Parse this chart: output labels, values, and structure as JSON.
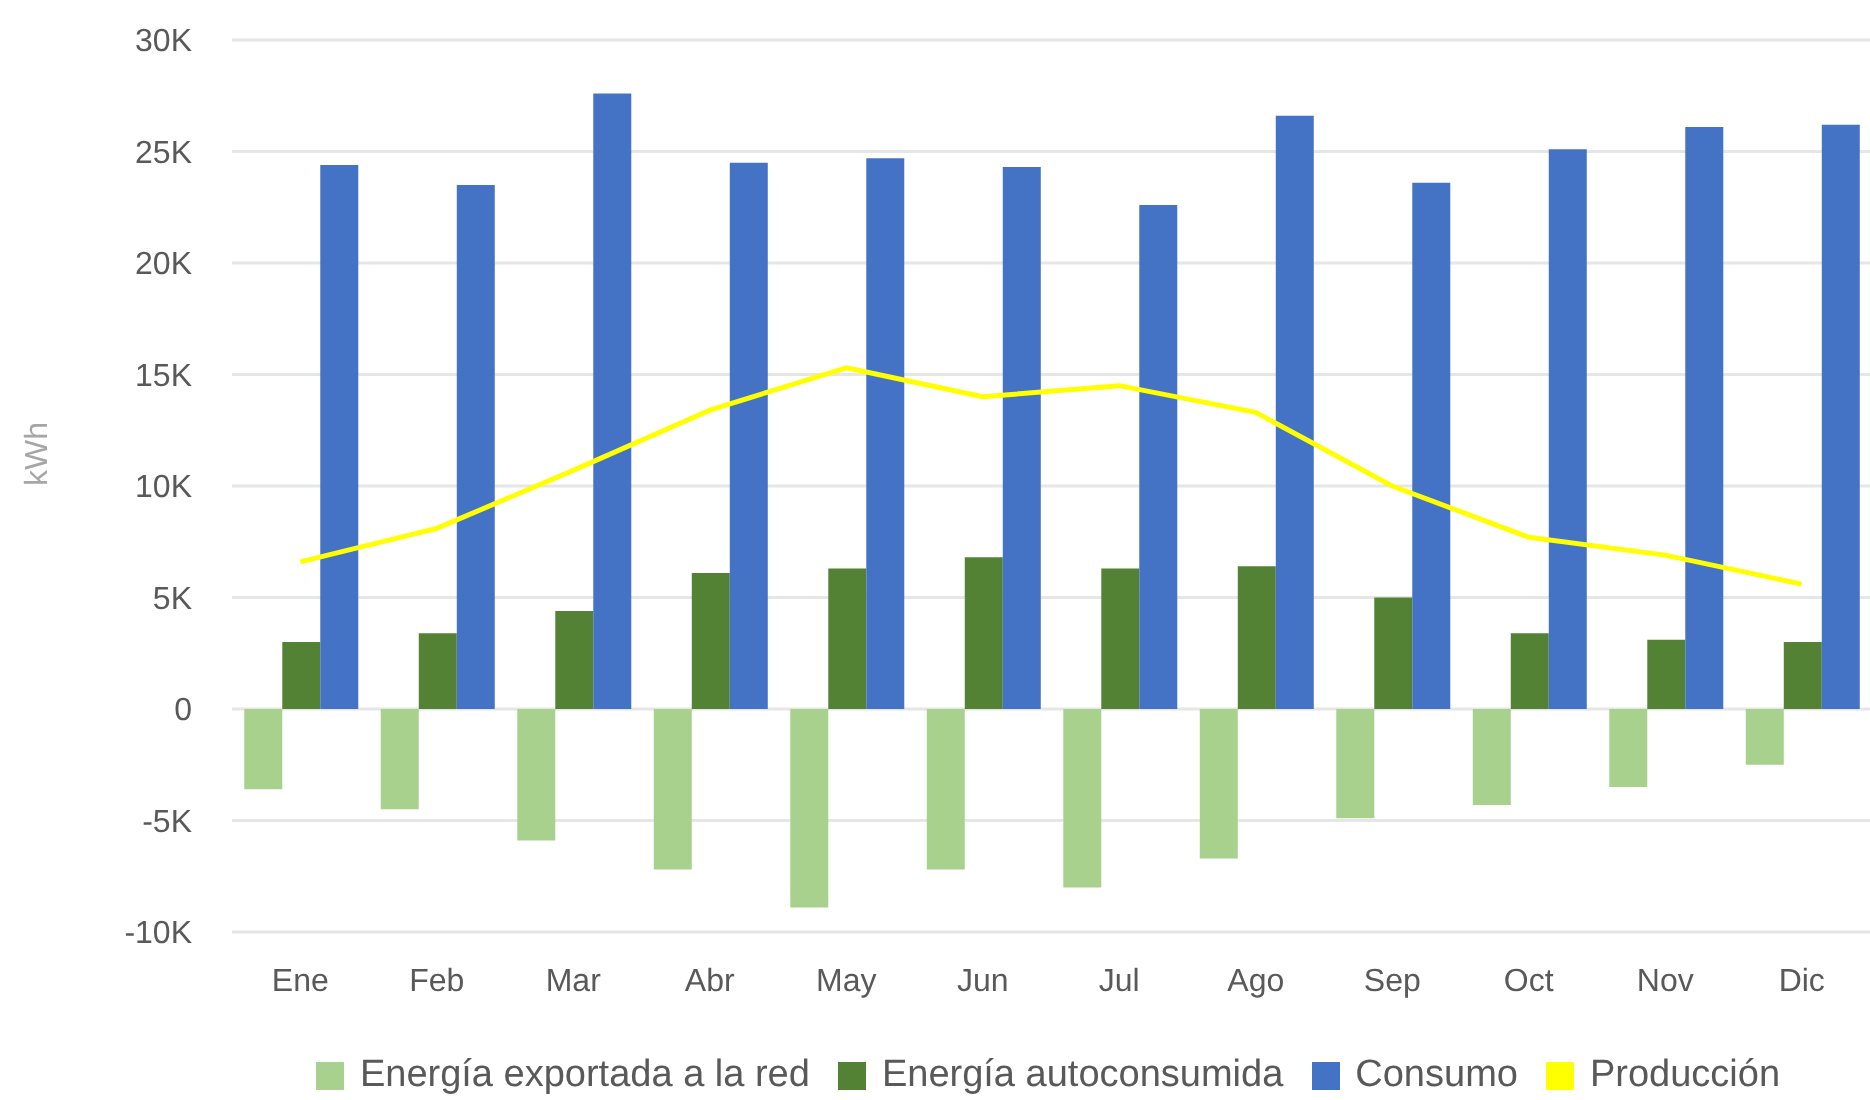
{
  "chart_data": {
    "type": "bar",
    "ylabel": "kWh",
    "categories": [
      "Ene",
      "Feb",
      "Mar",
      "Abr",
      "May",
      "Jun",
      "Jul",
      "Ago",
      "Sep",
      "Oct",
      "Nov",
      "Dic"
    ],
    "series": [
      {
        "name": "Energía exportada a la red",
        "color": "#a9d18e",
        "values": [
          -3600,
          -4500,
          -5900,
          -7200,
          -8900,
          -7200,
          -8000,
          -6700,
          -4900,
          -4300,
          -3500,
          -2500
        ]
      },
      {
        "name": "Energía autoconsumida",
        "color": "#548235",
        "values": [
          3000,
          3400,
          4400,
          6100,
          6300,
          6800,
          6300,
          6400,
          5000,
          3400,
          3100,
          3000
        ]
      },
      {
        "name": "Consumo",
        "color": "#4472c4",
        "values": [
          24400,
          23500,
          27600,
          24500,
          24700,
          24300,
          22600,
          26600,
          23600,
          25100,
          26100,
          26200
        ]
      },
      {
        "name": "Producción",
        "type": "line",
        "color": "#ffff00",
        "values": [
          6600,
          8100,
          10700,
          13400,
          15300,
          14000,
          14500,
          13300,
          10000,
          7700,
          6900,
          5600
        ]
      }
    ],
    "ylim": [
      -10000,
      30000
    ],
    "yticks": [
      {
        "value": -10000,
        "label": "-10K"
      },
      {
        "value": -5000,
        "label": "-5K"
      },
      0,
      {
        "value": 5000,
        "label": "5K"
      },
      {
        "value": 10000,
        "label": "10K"
      },
      {
        "value": 15000,
        "label": "15K"
      },
      {
        "value": 20000,
        "label": "20K"
      },
      {
        "value": 25000,
        "label": "25K"
      },
      {
        "value": 30000,
        "label": "30K"
      }
    ],
    "grid": "y",
    "legend": "bottom",
    "marker": "none"
  }
}
